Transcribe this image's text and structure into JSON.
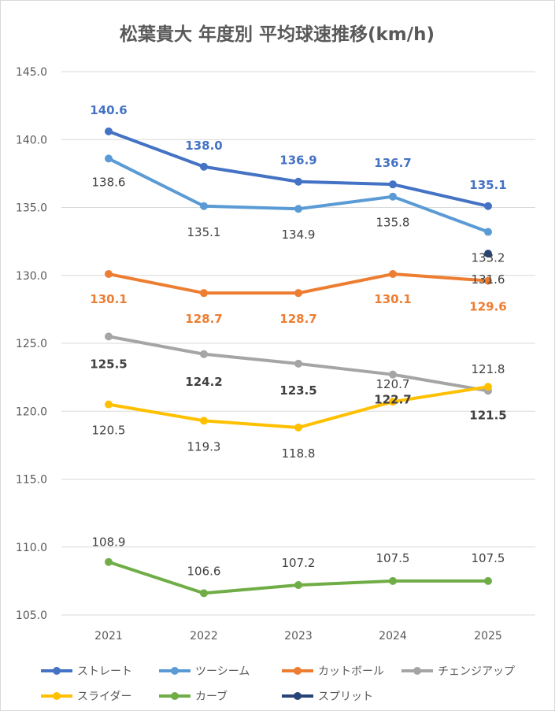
{
  "chart_data": {
    "type": "line",
    "title": "松葉貴大 年度別 平均球速推移(km/h)",
    "categories": [
      "2021",
      "2022",
      "2023",
      "2024",
      "2025"
    ],
    "ylim": [
      105,
      145
    ],
    "yticks": [
      "105.0",
      "110.0",
      "115.0",
      "120.0",
      "125.0",
      "130.0",
      "135.0",
      "140.0",
      "145.0"
    ],
    "grid": true,
    "legend_position": "bottom",
    "series": [
      {
        "name": "ストレート",
        "color": "#4472C4",
        "values": [
          140.6,
          138.0,
          136.9,
          136.7,
          135.1
        ],
        "labels": [
          "140.6",
          "138.0",
          "136.9",
          "136.7",
          "135.1"
        ],
        "label_color": "#4472C4",
        "label_bold": true
      },
      {
        "name": "ツーシーム",
        "color": "#5B9BD5",
        "values": [
          138.6,
          135.1,
          134.9,
          135.8,
          133.2
        ],
        "labels": [
          "138.6",
          "135.1",
          "134.9",
          "135.8",
          "133.2"
        ],
        "label_color": "#404040",
        "label_bold": false
      },
      {
        "name": "カットボール",
        "color": "#ED7D31",
        "values": [
          130.1,
          128.7,
          128.7,
          130.1,
          129.6
        ],
        "labels": [
          "130.1",
          "128.7",
          "128.7",
          "130.1",
          "129.6"
        ],
        "label_color": "#ED7D31",
        "label_bold": true
      },
      {
        "name": "チェンジアップ",
        "color": "#A5A5A5",
        "values": [
          125.5,
          124.2,
          123.5,
          122.7,
          121.5
        ],
        "labels": [
          "125.5",
          "124.2",
          "123.5",
          "122.7",
          "121.5"
        ],
        "label_color": "#404040",
        "label_bold": true
      },
      {
        "name": "スライダー",
        "color": "#FFC000",
        "values": [
          120.5,
          119.3,
          118.8,
          120.7,
          121.8
        ],
        "labels": [
          "120.5",
          "119.3",
          "118.8",
          "120.7",
          "121.8"
        ],
        "label_color": "#404040",
        "label_bold": false
      },
      {
        "name": "カーブ",
        "color": "#70AD47",
        "values": [
          108.9,
          106.6,
          107.2,
          107.5,
          107.5
        ],
        "labels": [
          "108.9",
          "106.6",
          "107.2",
          "107.5",
          "107.5"
        ],
        "label_color": "#404040",
        "label_bold": false
      },
      {
        "name": "スプリット",
        "color": "#264478",
        "values": [
          null,
          null,
          null,
          null,
          131.6
        ],
        "labels": [
          "",
          "",
          "",
          "",
          "131.6"
        ],
        "label_color": "#404040",
        "label_bold": false
      }
    ]
  }
}
